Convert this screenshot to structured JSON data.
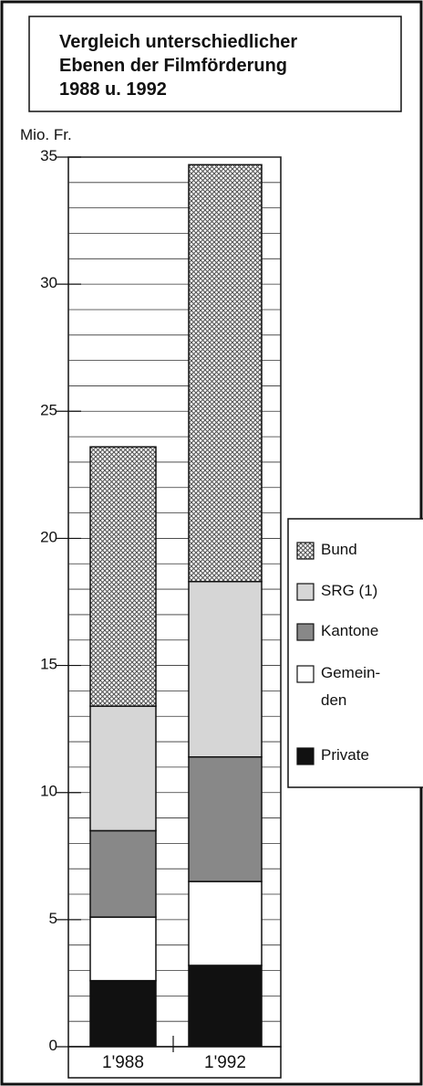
{
  "chart_data": {
    "type": "stacked_bar",
    "title": "Vergleich unterschiedlicher\nEbenen der Filmförderung\n1988 u. 1992",
    "y_label": "Mio. Fr.",
    "categories": [
      "1'988",
      "1'992"
    ],
    "series": [
      {
        "name": "Bund",
        "color": "#9a9a9a",
        "pattern": "crosshatch",
        "values": [
          10.2,
          16.4
        ]
      },
      {
        "name": "SRG (1)",
        "color": "#d6d6d6",
        "values": [
          4.9,
          6.9
        ]
      },
      {
        "name": "Kantone",
        "color": "#888888",
        "values": [
          3.4,
          4.9
        ]
      },
      {
        "name": "Gemein-\nden",
        "color": "#ffffff",
        "values": [
          2.5,
          3.3
        ]
      },
      {
        "name": "Private",
        "color": "#111111",
        "values": [
          2.6,
          3.2
        ]
      }
    ],
    "ylim": [
      0,
      35
    ],
    "yticks": [
      0,
      5,
      10,
      15,
      20,
      25,
      30,
      35
    ],
    "minor_yticks": [
      1,
      2,
      3,
      4,
      6,
      7,
      8,
      9,
      11,
      12,
      13,
      14,
      16,
      17,
      18,
      19,
      21,
      22,
      23,
      24,
      26,
      27,
      28,
      29,
      31,
      32,
      33,
      34
    ],
    "grid": true,
    "legend": "right"
  }
}
